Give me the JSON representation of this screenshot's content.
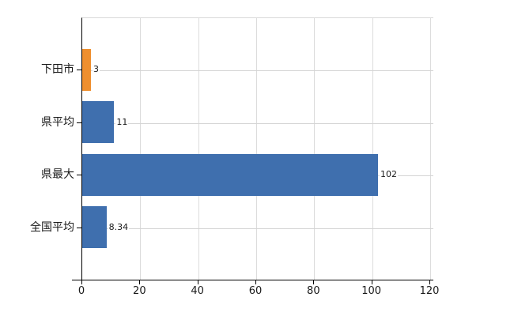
{
  "chart_data": {
    "type": "bar",
    "orientation": "horizontal",
    "title": "",
    "xlabel": "",
    "ylabel": "",
    "categories": [
      "下田市",
      "県平均",
      "県最大",
      "全国平均"
    ],
    "values": [
      3,
      11,
      102,
      8.34
    ],
    "value_labels": [
      "3",
      "11",
      "102",
      "8.34"
    ],
    "bar_colors": [
      "#ee8f2f",
      "#3f6fae",
      "#3f6fae",
      "#3f6fae"
    ],
    "xlim": [
      0,
      120
    ],
    "xticks": [
      0,
      20,
      40,
      60,
      80,
      100,
      120
    ],
    "xtick_labels": [
      "0",
      "20",
      "40",
      "60",
      "80",
      "100",
      "120"
    ],
    "grid": true,
    "legend": false
  },
  "colors": {
    "background": "#ffffff",
    "axis": "#000000",
    "vertical_gridline": "#dcdcdc",
    "horizontal_gridline": "#d4d4d4",
    "text": "#1a1a1a",
    "bar_blue": "#3f6fae",
    "bar_orange": "#ee8f2f"
  }
}
